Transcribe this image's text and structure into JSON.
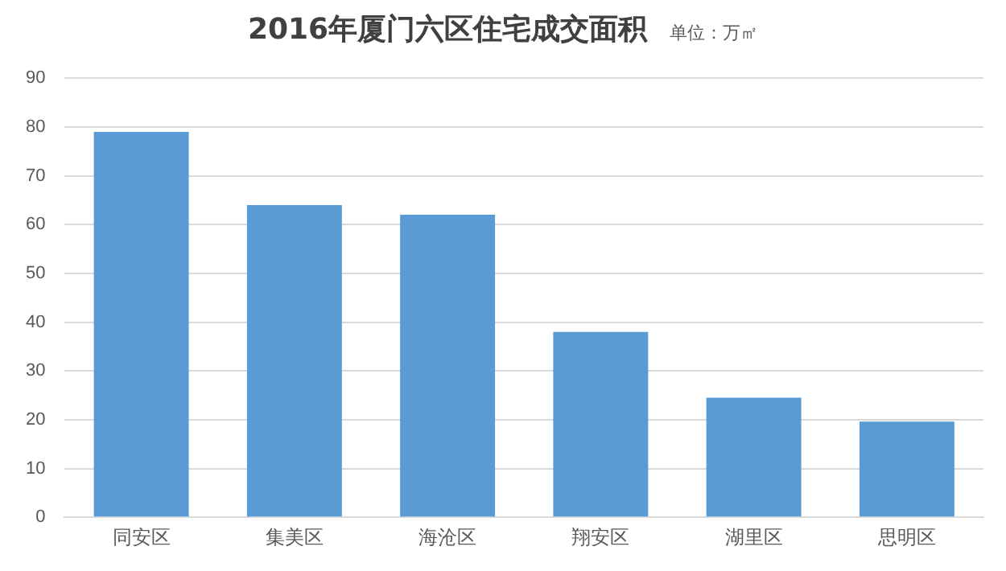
{
  "chart_data": {
    "type": "bar",
    "title": "2016年厦门六区住宅成交面积",
    "subtitle": "单位：万㎡",
    "categories": [
      "同安区",
      "集美区",
      "海沧区",
      "翔安区",
      "湖里区",
      "思明区"
    ],
    "values": [
      79,
      64,
      62,
      38,
      24.5,
      19.6
    ],
    "color": "#5b9bd5",
    "ylim": [
      0,
      90
    ],
    "yticks": [
      0,
      10,
      20,
      30,
      40,
      50,
      60,
      70,
      80,
      90
    ],
    "grid": "y",
    "legend": false
  }
}
